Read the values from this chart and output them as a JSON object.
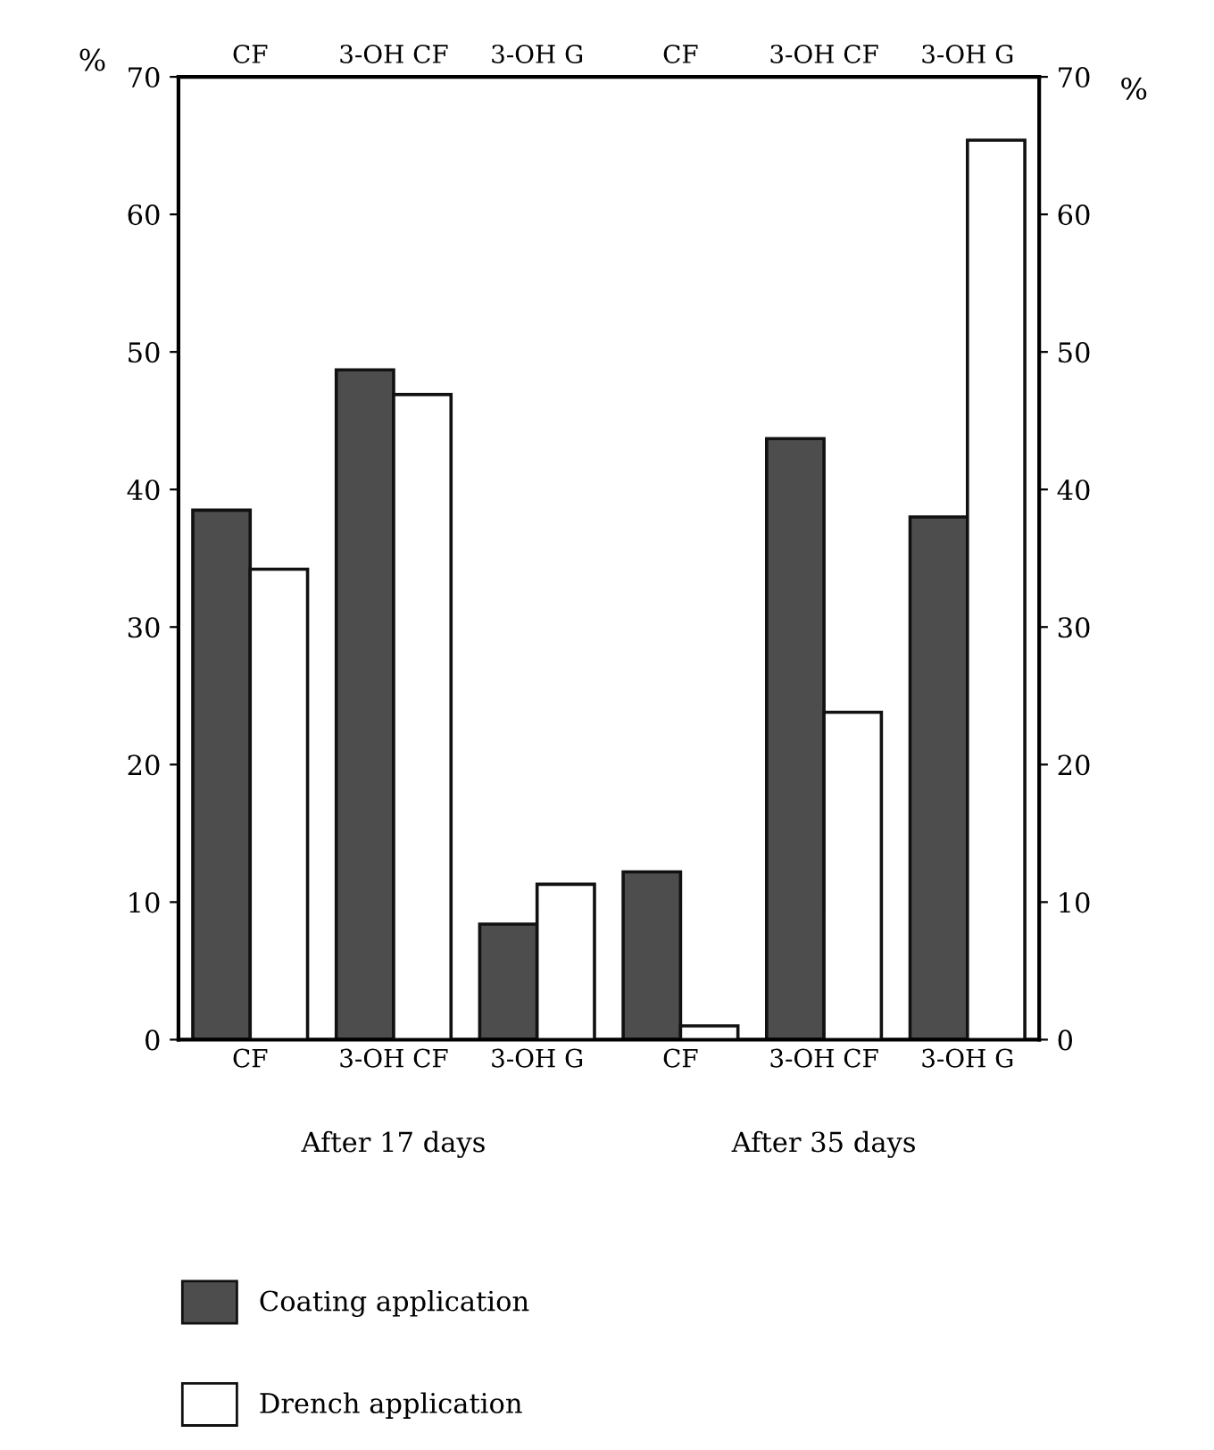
{
  "chart_data": {
    "type": "bar",
    "categories": [
      "CF",
      "3-OH CF",
      "3-OH G",
      "CF",
      "3-OH CF",
      "3-OH G"
    ],
    "series": [
      {
        "name": "Coating application",
        "color": "#4d4d4d",
        "values": [
          38.5,
          48.7,
          8.4,
          12.2,
          43.7,
          38
        ]
      },
      {
        "name": "Drench application",
        "color": "#ffffff",
        "values": [
          34.2,
          46.9,
          11.3,
          1.0,
          23.8,
          65.4
        ]
      }
    ],
    "ylabel": "%",
    "y2label": "%",
    "ylim": [
      0,
      70
    ],
    "yticks": [
      0,
      10,
      20,
      30,
      40,
      50,
      60,
      70
    ],
    "y2lim": [
      0,
      70
    ],
    "y2ticks": [
      0,
      10,
      20,
      30,
      40,
      50,
      60,
      70
    ],
    "annotations": [
      "After 17 days",
      "After 35 days"
    ],
    "legend": "bottom",
    "grid": false
  }
}
